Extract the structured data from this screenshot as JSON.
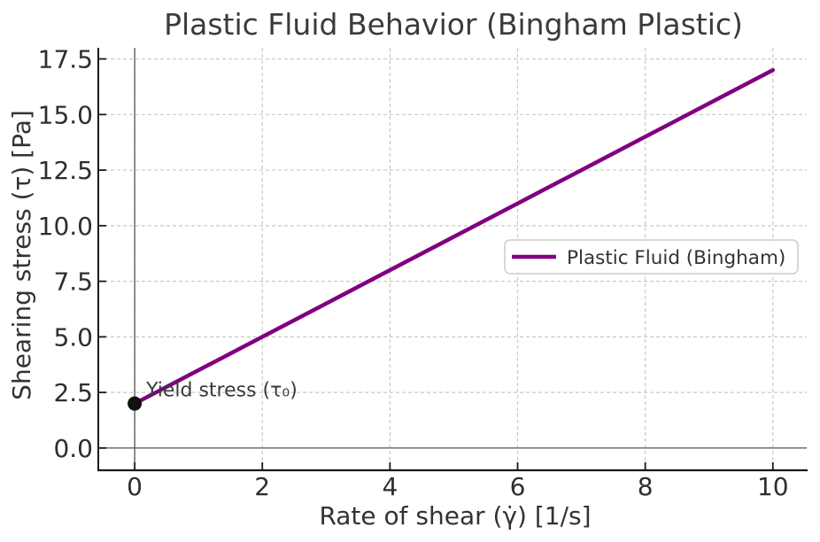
{
  "figure": {
    "background": "#ffffff"
  },
  "chart_data": {
    "type": "line",
    "title": "Plastic Fluid Behavior (Bingham Plastic)",
    "xlabel": "Rate of shear (γ̇) [1/s]",
    "ylabel": "Shearing stress (τ) [Pa]",
    "xlim": [
      -0.57,
      10.53
    ],
    "ylim": [
      -1.0,
      18.0
    ],
    "x_ticks": {
      "values": [
        0,
        2,
        4,
        6,
        8,
        10
      ],
      "labels": [
        "0",
        "2",
        "4",
        "6",
        "8",
        "10"
      ]
    },
    "y_ticks": {
      "values": [
        0.0,
        2.5,
        5.0,
        7.5,
        10.0,
        12.5,
        15.0,
        17.5
      ],
      "labels": [
        "0.0",
        "2.5",
        "5.0",
        "7.5",
        "10.0",
        "12.5",
        "15.0",
        "17.5"
      ]
    },
    "grid": {
      "visible": true,
      "style": "dashed",
      "color": "#c9c9c9"
    },
    "zero_lines": {
      "x": 0,
      "y": 0,
      "color": "#555555"
    },
    "spine_color": "#1a1a1a",
    "series": [
      {
        "name": "Plastic Fluid (Bingham)",
        "color": "#800080",
        "x": [
          0,
          1,
          2,
          3,
          4,
          5,
          6,
          7,
          8,
          9,
          10
        ],
        "y": [
          2.0,
          3.5,
          5.0,
          6.5,
          8.0,
          9.5,
          11.0,
          12.5,
          14.0,
          15.5,
          17.0
        ],
        "yield_stress": 2.0,
        "plastic_viscosity": 1.5
      }
    ],
    "annotations": [
      {
        "text": "Yield stress (τ₀)",
        "x": 0,
        "y": 2.0,
        "marker": "circle",
        "marker_color": "#111111"
      }
    ],
    "legend": {
      "position": "center right",
      "entries": [
        "Plastic Fluid (Bingham)"
      ],
      "border_color": "#cccccc",
      "background": "#ffffff"
    }
  }
}
